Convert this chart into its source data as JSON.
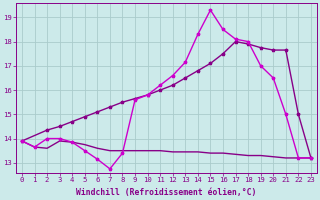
{
  "bg_color": "#cceaea",
  "grid_color": "#aacccc",
  "line_color_magenta": "#cc00cc",
  "line_color_dark": "#880088",
  "xlabel": "Windchill (Refroidissement éolien,°C)",
  "ylabel_vals": [
    13,
    14,
    15,
    16,
    17,
    18,
    19
  ],
  "xlabel_vals": [
    0,
    1,
    2,
    3,
    4,
    5,
    6,
    7,
    8,
    9,
    10,
    11,
    12,
    13,
    14,
    15,
    16,
    17,
    18,
    19,
    20,
    21,
    22,
    23
  ],
  "xlim": [
    -0.5,
    23.5
  ],
  "ylim": [
    12.6,
    19.6
  ],
  "line1_x": [
    0,
    1,
    2,
    3,
    4,
    5,
    6,
    7,
    8,
    9,
    10,
    11,
    12,
    13,
    14,
    15,
    16,
    17,
    18,
    19,
    20,
    21,
    22,
    23
  ],
  "line1_y": [
    13.9,
    13.65,
    14.0,
    14.0,
    13.85,
    13.5,
    13.15,
    12.75,
    13.4,
    15.6,
    15.8,
    16.2,
    16.6,
    17.15,
    18.3,
    19.3,
    18.5,
    18.1,
    18.0,
    17.0,
    16.5,
    15.0,
    13.2,
    13.2
  ],
  "line2_x": [
    0,
    2,
    3,
    4,
    5,
    6,
    7,
    8,
    9,
    10,
    11,
    12,
    13,
    14,
    15,
    16,
    17,
    18,
    19,
    20,
    21,
    22,
    23
  ],
  "line2_y": [
    13.9,
    14.35,
    14.5,
    14.7,
    14.9,
    15.1,
    15.3,
    15.5,
    15.65,
    15.8,
    16.0,
    16.2,
    16.5,
    16.8,
    17.1,
    17.5,
    18.0,
    17.9,
    17.75,
    17.65,
    17.65,
    15.0,
    13.2
  ],
  "line3_x": [
    0,
    1,
    2,
    3,
    4,
    5,
    6,
    7,
    8,
    9,
    10,
    11,
    12,
    13,
    14,
    15,
    16,
    17,
    18,
    19,
    20,
    21,
    22,
    23
  ],
  "line3_y": [
    13.9,
    13.65,
    13.6,
    13.9,
    13.85,
    13.75,
    13.6,
    13.5,
    13.5,
    13.5,
    13.5,
    13.5,
    13.45,
    13.45,
    13.45,
    13.4,
    13.4,
    13.35,
    13.3,
    13.3,
    13.25,
    13.2,
    13.2,
    13.2
  ],
  "marker_size": 2.5,
  "linewidth": 1.0,
  "tick_fontsize": 5.2,
  "xlabel_fontsize": 5.8
}
